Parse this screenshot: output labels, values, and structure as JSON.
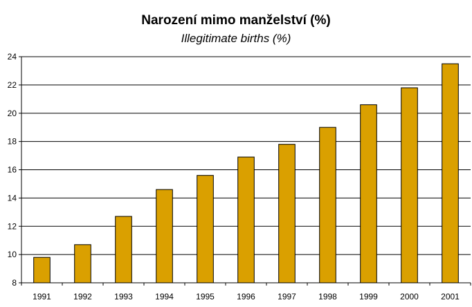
{
  "chart_data": {
    "type": "bar",
    "title": "Narození mimo manželství (%)",
    "subtitle": "Illegitimate births (%)",
    "xlabel": "",
    "ylabel": "",
    "categories": [
      "1991",
      "1992",
      "1993",
      "1994",
      "1995",
      "1996",
      "1997",
      "1998",
      "1999",
      "2000",
      "2001"
    ],
    "values": [
      9.8,
      10.7,
      12.7,
      14.6,
      15.6,
      16.9,
      17.8,
      19.0,
      20.6,
      21.8,
      23.5
    ],
    "ylim": [
      8,
      24
    ],
    "yticks": [
      "8",
      "10",
      "12",
      "14",
      "16",
      "18",
      "20",
      "22",
      "24"
    ],
    "grid": true,
    "legend": "none",
    "colors": {
      "bar": "#DAA000",
      "bar_edge": "#000000",
      "grid": "#000000"
    }
  }
}
